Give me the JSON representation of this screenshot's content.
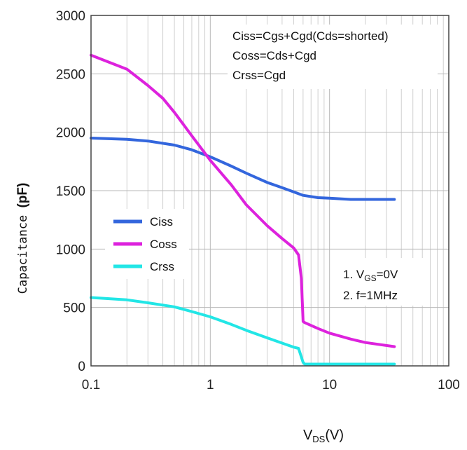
{
  "chart_data": {
    "type": "line",
    "x_scale": "log",
    "xlim": [
      0.1,
      100
    ],
    "ylim": [
      0,
      3000
    ],
    "x_ticks": [
      "0.1",
      "1",
      "10",
      "100"
    ],
    "y_ticks": [
      "0",
      "500",
      "1000",
      "1500",
      "2000",
      "2500",
      "3000"
    ],
    "ylabel": {
      "main": "Capacitance ",
      "unit": "(pF)"
    },
    "xlabel": {
      "pre": "V",
      "sub": "DS",
      "post": "(V)"
    },
    "grid": true,
    "legend_position": "middle-left",
    "annotations": {
      "formulas": [
        "Ciss=Cgs+Cgd(Cds=shorted)",
        "Coss=Cds+Cgd",
        "Crss=Cgd"
      ],
      "conditions": [
        {
          "pre": "1. V",
          "sub": "GS",
          "post": "=0V"
        },
        {
          "pre": "2. f=1MHz",
          "sub": "",
          "post": ""
        }
      ]
    },
    "series": [
      {
        "name": "Ciss",
        "color": "#3366dd",
        "x": [
          0.1,
          0.2,
          0.3,
          0.5,
          0.7,
          1,
          1.5,
          2,
          3,
          4,
          5,
          6,
          8,
          10,
          15,
          20,
          35
        ],
        "y": [
          1950,
          1940,
          1925,
          1890,
          1850,
          1790,
          1710,
          1650,
          1570,
          1525,
          1490,
          1460,
          1440,
          1435,
          1425,
          1425,
          1425
        ]
      },
      {
        "name": "Coss",
        "color": "#dd22dd",
        "x": [
          0.1,
          0.2,
          0.3,
          0.4,
          0.5,
          0.7,
          1,
          1.5,
          2,
          3,
          4,
          5,
          5.5,
          5.8,
          6.0,
          6.2,
          8,
          10,
          15,
          20,
          35
        ],
        "y": [
          2660,
          2540,
          2400,
          2290,
          2170,
          1970,
          1760,
          1550,
          1380,
          1200,
          1090,
          1010,
          950,
          750,
          380,
          370,
          320,
          280,
          230,
          200,
          165
        ]
      },
      {
        "name": "Crss",
        "color": "#22e6e6",
        "x": [
          0.1,
          0.2,
          0.3,
          0.5,
          0.7,
          1,
          1.5,
          2,
          3,
          4,
          5,
          5.5,
          6.0,
          6.2,
          8,
          10,
          20,
          35
        ],
        "y": [
          585,
          565,
          540,
          505,
          465,
          420,
          355,
          305,
          240,
          195,
          160,
          150,
          30,
          15,
          15,
          15,
          15,
          15
        ]
      }
    ]
  }
}
